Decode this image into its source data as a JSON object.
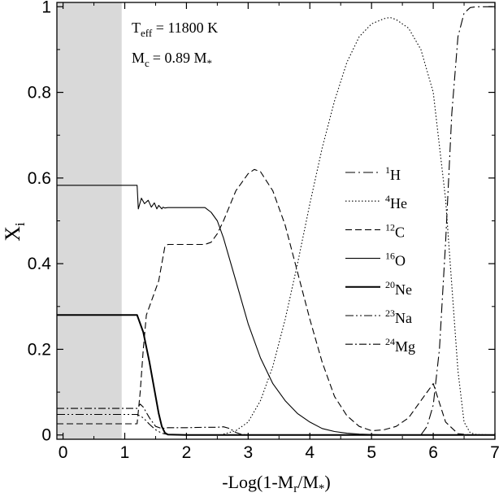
{
  "chart_data": {
    "type": "line",
    "xlabel": "-Log(1-Mr/M*)",
    "xlabel_parts": {
      "pre": "-Log(1-M",
      "sub1": "r",
      "mid": "/M",
      "sub2": "*",
      "post": ")"
    },
    "ylabel": "Xi",
    "ylabel_parts": {
      "main": "X",
      "sub": "i"
    },
    "xlim": [
      -0.1,
      7.0
    ],
    "ylim": [
      -0.01,
      1.01
    ],
    "xticks": [
      "0",
      "1",
      "2",
      "3",
      "4",
      "5",
      "6",
      "7"
    ],
    "yticks": [
      "0",
      "0.2",
      "0.4",
      "0.6",
      "0.8",
      "1"
    ],
    "shaded_region": {
      "x0": -0.1,
      "x1": 0.95,
      "color": "#d9d9d9"
    },
    "annotations": {
      "teff": {
        "pre": "T",
        "sub": "eff",
        "post": " = 11800 K"
      },
      "mc": {
        "pre": "M",
        "sub": "c",
        "post": "= 0.89 M",
        "sub2": "*"
      }
    },
    "grid": false,
    "legend_position": "center-right",
    "series": [
      {
        "name": "1H",
        "sup": "1",
        "el": "H",
        "dash": "12,4,2,4",
        "width": 1.1,
        "x": [
          5.8,
          5.9,
          6.0,
          6.1,
          6.2,
          6.3,
          6.4,
          6.5,
          6.6,
          6.7,
          6.8,
          7.0
        ],
        "y": [
          0.0,
          0.02,
          0.07,
          0.2,
          0.45,
          0.75,
          0.93,
          0.985,
          0.998,
          1.0,
          1.0,
          1.0
        ]
      },
      {
        "name": "4He",
        "sup": "4",
        "el": "He",
        "dash": "1.5,2.5",
        "width": 1.1,
        "x": [
          2.6,
          2.8,
          3.0,
          3.2,
          3.4,
          3.6,
          3.8,
          4.0,
          4.2,
          4.4,
          4.6,
          4.8,
          5.0,
          5.2,
          5.3,
          5.4,
          5.6,
          5.8,
          6.0,
          6.2,
          6.3,
          6.4,
          6.5,
          6.6,
          6.7,
          7.0
        ],
        "y": [
          0.002,
          0.01,
          0.03,
          0.08,
          0.16,
          0.27,
          0.4,
          0.54,
          0.67,
          0.78,
          0.87,
          0.93,
          0.96,
          0.972,
          0.975,
          0.97,
          0.95,
          0.9,
          0.8,
          0.55,
          0.35,
          0.15,
          0.03,
          0.005,
          0.001,
          0.0
        ]
      },
      {
        "name": "12C",
        "sup": "12",
        "el": "C",
        "dash": "8,4",
        "width": 1.1,
        "x": [
          -0.1,
          0.95,
          1.2,
          1.25,
          1.3,
          1.35,
          1.4,
          1.45,
          1.5,
          1.55,
          1.6,
          1.65,
          1.7,
          1.8,
          2.0,
          2.2,
          2.3,
          2.4,
          2.5,
          2.6,
          2.8,
          3.0,
          3.1,
          3.2,
          3.4,
          3.6,
          3.8,
          4.0,
          4.2,
          4.4,
          4.6,
          4.8,
          5.0,
          5.2,
          5.4,
          5.6,
          5.8,
          6.0,
          6.2,
          6.4,
          6.6,
          7.0
        ],
        "y": [
          0.026,
          0.026,
          0.026,
          0.1,
          0.2,
          0.28,
          0.3,
          0.32,
          0.34,
          0.36,
          0.4,
          0.44,
          0.445,
          0.445,
          0.445,
          0.445,
          0.445,
          0.45,
          0.47,
          0.5,
          0.57,
          0.61,
          0.62,
          0.615,
          0.57,
          0.49,
          0.38,
          0.27,
          0.17,
          0.09,
          0.045,
          0.02,
          0.01,
          0.012,
          0.02,
          0.04,
          0.08,
          0.12,
          0.03,
          0.003,
          0.0,
          0.0
        ]
      },
      {
        "name": "16O",
        "sup": "16",
        "el": "O",
        "dash": "",
        "width": 1.1,
        "x": [
          -0.1,
          0.95,
          1.2,
          1.22,
          1.27,
          1.32,
          1.38,
          1.43,
          1.48,
          1.52,
          1.55,
          1.6,
          1.62,
          1.65,
          1.7,
          2.0,
          2.3,
          2.4,
          2.5,
          2.6,
          2.8,
          3.0,
          3.2,
          3.4,
          3.6,
          3.8,
          4.0,
          4.2,
          4.4,
          4.6,
          4.8,
          5.0,
          5.2,
          5.6,
          6.0,
          7.0
        ],
        "y": [
          0.583,
          0.583,
          0.583,
          0.528,
          0.553,
          0.54,
          0.548,
          0.532,
          0.542,
          0.528,
          0.536,
          0.528,
          0.532,
          0.53,
          0.531,
          0.531,
          0.531,
          0.52,
          0.5,
          0.46,
          0.36,
          0.26,
          0.18,
          0.12,
          0.08,
          0.05,
          0.03,
          0.015,
          0.008,
          0.004,
          0.002,
          0.001,
          0.0,
          0.0,
          0.0,
          0.0
        ]
      },
      {
        "name": "20Ne",
        "sup": "20",
        "el": "Ne",
        "dash": "",
        "width": 2.0,
        "x": [
          -0.1,
          0.95,
          1.2,
          1.3,
          1.4,
          1.45,
          1.5,
          1.55,
          1.6,
          1.65,
          1.7,
          2.0,
          3.0,
          4.0,
          5.0,
          6.0,
          7.0
        ],
        "y": [
          0.28,
          0.28,
          0.28,
          0.24,
          0.17,
          0.13,
          0.09,
          0.05,
          0.02,
          0.005,
          0.001,
          0.0,
          0.0,
          0.0,
          0.0,
          0.0,
          0.0
        ]
      },
      {
        "name": "23Na",
        "sup": "23",
        "el": "Na",
        "dash": "10,3,2,3,2,3",
        "width": 1.1,
        "x": [
          -0.1,
          0.95,
          1.2,
          1.3,
          1.4,
          1.5,
          1.6,
          1.7,
          2.0,
          2.5,
          3.0,
          4.0,
          5.0,
          6.0,
          7.0
        ],
        "y": [
          0.048,
          0.048,
          0.048,
          0.04,
          0.025,
          0.012,
          0.004,
          0.001,
          0.0,
          0.0,
          0.0,
          0.0,
          0.0,
          0.0,
          0.0
        ]
      },
      {
        "name": "24Mg",
        "sup": "24",
        "el": "Mg",
        "dash": "9,3,2,3",
        "width": 1.1,
        "x": [
          -0.1,
          0.95,
          1.2,
          1.25,
          1.3,
          1.4,
          1.5,
          1.6,
          1.65,
          1.7,
          2.0,
          2.3,
          2.5,
          2.6,
          2.7,
          2.8,
          2.9,
          3.0,
          4.0,
          5.0,
          6.0,
          7.0
        ],
        "y": [
          0.062,
          0.062,
          0.062,
          0.072,
          0.065,
          0.04,
          0.02,
          0.015,
          0.016,
          0.017,
          0.017,
          0.018,
          0.018,
          0.019,
          0.015,
          0.006,
          0.001,
          0.0,
          0.0,
          0.0,
          0.0,
          0.0
        ]
      }
    ]
  }
}
